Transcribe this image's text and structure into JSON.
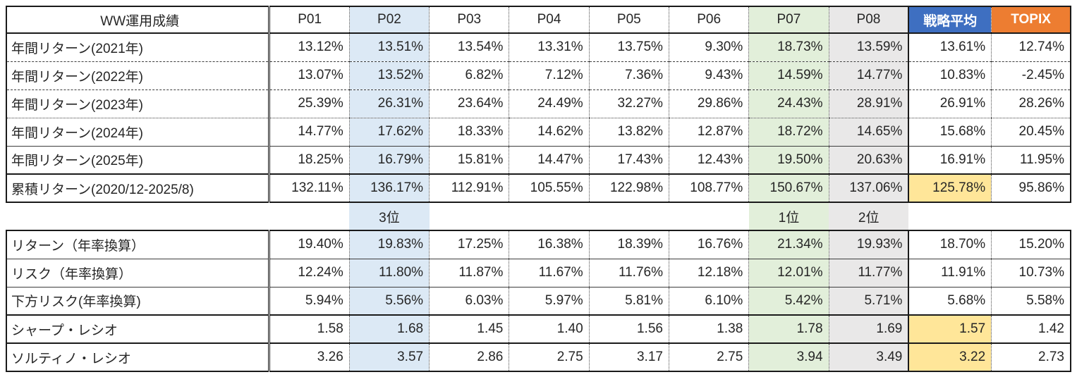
{
  "colors": {
    "hl-blue": "#DCE9F5",
    "hl-green": "#E2EFDA",
    "hl-gray": "#E9E8E8",
    "hl-yellow": "#FFE699",
    "strategy-header": "#3E6FC1",
    "topix-header": "#ED7D31"
  },
  "chart_data": {
    "type": "table",
    "title": "WW運用成績",
    "columns": [
      "P01",
      "P02",
      "P03",
      "P04",
      "P05",
      "P06",
      "P07",
      "P08",
      "戦略平均",
      "TOPIX"
    ],
    "column_highlights": {
      "P02": "blue",
      "P07": "green",
      "P08": "gray"
    },
    "header_fills": {
      "戦略平均": "strategy",
      "TOPIX": "topix"
    },
    "annual_rows": [
      {
        "label": "年間リターン(2021年)",
        "values": [
          "13.12%",
          "13.51%",
          "13.54%",
          "13.31%",
          "13.75%",
          "9.30%",
          "18.73%",
          "13.59%",
          "13.61%",
          "12.74%"
        ]
      },
      {
        "label": "年間リターン(2022年)",
        "values": [
          "13.07%",
          "13.52%",
          "6.82%",
          "7.12%",
          "7.36%",
          "9.43%",
          "14.59%",
          "14.77%",
          "10.83%",
          "-2.45%"
        ]
      },
      {
        "label": "年間リターン(2023年)",
        "values": [
          "25.39%",
          "26.31%",
          "23.64%",
          "24.49%",
          "32.27%",
          "29.86%",
          "24.43%",
          "28.91%",
          "26.91%",
          "28.26%"
        ]
      },
      {
        "label": "年間リターン(2024年)",
        "values": [
          "14.77%",
          "17.62%",
          "18.33%",
          "14.62%",
          "13.82%",
          "12.87%",
          "18.72%",
          "14.65%",
          "15.68%",
          "20.45%"
        ]
      },
      {
        "label": "年間リターン(2025年)",
        "values": [
          "18.25%",
          "16.79%",
          "15.81%",
          "14.47%",
          "17.43%",
          "12.43%",
          "19.50%",
          "20.63%",
          "16.91%",
          "11.95%"
        ]
      }
    ],
    "cumulative_row": {
      "label": "累積リターン(2020/12-2025/8)",
      "values": [
        "132.11%",
        "136.17%",
        "112.91%",
        "105.55%",
        "122.98%",
        "108.77%",
        "150.67%",
        "137.06%",
        "125.78%",
        "95.86%"
      ],
      "strategy_highlight": true
    },
    "rank_row": {
      "P02": "3位",
      "P07": "1位",
      "P08": "2位"
    },
    "stats_rows": [
      {
        "label": "リターン（年率換算）",
        "values": [
          "19.40%",
          "19.83%",
          "17.25%",
          "16.38%",
          "18.39%",
          "16.76%",
          "21.34%",
          "19.93%",
          "18.70%",
          "15.20%"
        ]
      },
      {
        "label": "リスク（年率換算）",
        "values": [
          "12.24%",
          "11.80%",
          "11.87%",
          "11.67%",
          "11.76%",
          "12.18%",
          "12.01%",
          "11.77%",
          "11.91%",
          "10.73%"
        ]
      },
      {
        "label": "下方リスク(年率換算)",
        "values": [
          "5.94%",
          "5.56%",
          "6.03%",
          "5.97%",
          "5.81%",
          "6.10%",
          "5.42%",
          "5.71%",
          "5.68%",
          "5.58%"
        ]
      },
      {
        "label": "シャープ・レシオ",
        "values": [
          "1.58",
          "1.68",
          "1.45",
          "1.40",
          "1.56",
          "1.38",
          "1.78",
          "1.69",
          "1.57",
          "1.42"
        ],
        "strategy_highlight": true
      },
      {
        "label": "ソルティノ・レシオ",
        "values": [
          "3.26",
          "3.57",
          "2.86",
          "2.75",
          "3.17",
          "2.75",
          "3.94",
          "3.49",
          "3.22",
          "2.73"
        ],
        "strategy_highlight": true
      }
    ]
  }
}
